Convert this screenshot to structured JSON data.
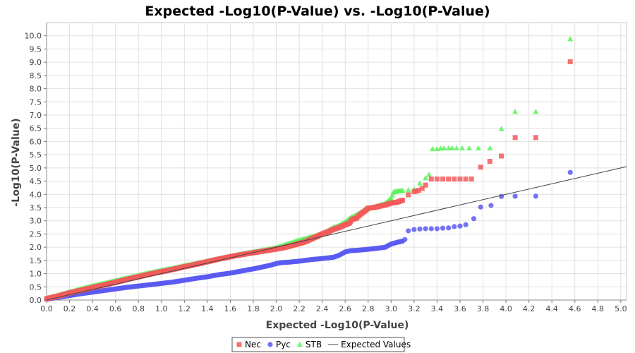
{
  "chart_data": {
    "type": "scatter",
    "title": "Expected -Log10(P-Value) vs. -Log10(P-Value)",
    "xlabel": "Expected -Log10(P-Value)",
    "ylabel": "-Log10(P-Value)",
    "xlim": [
      0,
      5.05
    ],
    "ylim": [
      0,
      10.5
    ],
    "x_ticks": [
      "0.0",
      "0.2",
      "0.4",
      "0.6",
      "0.8",
      "1.0",
      "1.2",
      "1.4",
      "1.6",
      "1.8",
      "2.0",
      "2.2",
      "2.4",
      "2.6",
      "2.8",
      "3.0",
      "3.2",
      "3.4",
      "3.6",
      "3.8",
      "4.0",
      "4.2",
      "4.4",
      "4.6",
      "4.8",
      "5.0"
    ],
    "y_ticks": [
      "0.0",
      "0.5",
      "1.0",
      "1.5",
      "2.0",
      "2.5",
      "3.0",
      "3.5",
      "4.0",
      "4.5",
      "5.0",
      "5.5",
      "6.0",
      "6.5",
      "7.0",
      "7.5",
      "8.0",
      "8.5",
      "9.0",
      "9.5",
      "10.0"
    ],
    "grid": true,
    "legend_position": "bottom",
    "background_color": "#ffffff",
    "plot_background": "#ffffff",
    "series": [
      {
        "name": "Nec",
        "marker": "square",
        "color": "#f25a5a",
        "x": [
          0.0,
          0.1,
          0.2,
          0.3,
          0.4,
          0.5,
          0.6,
          0.7,
          0.8,
          0.9,
          1.0,
          1.1,
          1.2,
          1.3,
          1.4,
          1.5,
          1.6,
          1.7,
          1.8,
          1.9,
          2.0,
          2.05,
          2.1,
          2.15,
          2.2,
          2.25,
          2.3,
          2.35,
          2.4,
          2.45,
          2.5,
          2.55,
          2.6,
          2.62,
          2.64,
          2.66,
          2.7,
          2.72,
          2.75,
          2.78,
          2.8,
          2.85,
          2.9,
          2.95,
          3.0,
          3.05,
          3.1,
          3.15,
          3.2,
          3.22,
          3.24,
          3.27,
          3.3,
          3.35,
          3.4,
          3.45,
          3.5,
          3.55,
          3.6,
          3.65,
          3.7,
          3.78,
          3.86,
          3.96,
          4.08,
          4.26,
          4.56
        ],
        "y": [
          0.05,
          0.15,
          0.27,
          0.37,
          0.47,
          0.57,
          0.67,
          0.78,
          0.88,
          0.98,
          1.07,
          1.16,
          1.26,
          1.35,
          1.45,
          1.55,
          1.64,
          1.72,
          1.79,
          1.86,
          1.93,
          1.97,
          2.02,
          2.08,
          2.14,
          2.2,
          2.3,
          2.4,
          2.5,
          2.58,
          2.68,
          2.75,
          2.85,
          2.88,
          2.92,
          3.05,
          3.1,
          3.2,
          3.3,
          3.4,
          3.48,
          3.5,
          3.55,
          3.6,
          3.67,
          3.7,
          3.78,
          3.98,
          4.1,
          4.12,
          4.15,
          4.22,
          4.35,
          4.58,
          4.58,
          4.58,
          4.58,
          4.58,
          4.58,
          4.58,
          4.58,
          5.03,
          5.25,
          5.45,
          6.15,
          6.15,
          9.02
        ]
      },
      {
        "name": "Pyc",
        "marker": "circle",
        "color": "#5a5af2",
        "x": [
          0.0,
          0.1,
          0.2,
          0.3,
          0.4,
          0.5,
          0.6,
          0.7,
          0.8,
          0.9,
          1.0,
          1.1,
          1.2,
          1.3,
          1.4,
          1.5,
          1.6,
          1.7,
          1.8,
          1.9,
          1.95,
          2.0,
          2.05,
          2.1,
          2.2,
          2.3,
          2.4,
          2.5,
          2.55,
          2.6,
          2.65,
          2.7,
          2.8,
          2.9,
          2.95,
          3.0,
          3.05,
          3.1,
          3.12,
          3.15,
          3.2,
          3.25,
          3.3,
          3.35,
          3.4,
          3.45,
          3.5,
          3.55,
          3.6,
          3.65,
          3.72,
          3.78,
          3.87,
          3.96,
          4.08,
          4.26,
          4.56
        ],
        "y": [
          0.03,
          0.1,
          0.17,
          0.24,
          0.3,
          0.36,
          0.42,
          0.48,
          0.53,
          0.58,
          0.63,
          0.68,
          0.75,
          0.82,
          0.88,
          0.96,
          1.02,
          1.1,
          1.18,
          1.27,
          1.32,
          1.38,
          1.42,
          1.43,
          1.47,
          1.53,
          1.57,
          1.62,
          1.7,
          1.82,
          1.87,
          1.88,
          1.92,
          1.97,
          2.0,
          2.12,
          2.18,
          2.23,
          2.29,
          2.62,
          2.67,
          2.69,
          2.7,
          2.7,
          2.7,
          2.72,
          2.73,
          2.78,
          2.8,
          2.85,
          3.08,
          3.52,
          3.58,
          3.92,
          3.93,
          3.93,
          4.83
        ]
      },
      {
        "name": "STB",
        "marker": "triangle",
        "color": "#5af25a",
        "x": [
          0.0,
          0.1,
          0.2,
          0.3,
          0.4,
          0.5,
          0.6,
          0.7,
          0.8,
          0.9,
          1.0,
          1.1,
          1.2,
          1.3,
          1.4,
          1.5,
          1.6,
          1.7,
          1.8,
          1.9,
          2.0,
          2.1,
          2.2,
          2.3,
          2.4,
          2.45,
          2.5,
          2.55,
          2.6,
          2.65,
          2.7,
          2.75,
          2.8,
          2.85,
          2.9,
          2.95,
          3.0,
          3.02,
          3.05,
          3.1,
          3.15,
          3.2,
          3.25,
          3.3,
          3.33,
          3.36,
          3.4,
          3.43,
          3.46,
          3.5,
          3.53,
          3.57,
          3.62,
          3.68,
          3.76,
          3.86,
          3.96,
          4.08,
          4.26,
          4.56
        ],
        "y": [
          0.06,
          0.18,
          0.3,
          0.42,
          0.53,
          0.63,
          0.73,
          0.83,
          0.93,
          1.03,
          1.12,
          1.2,
          1.3,
          1.38,
          1.47,
          1.56,
          1.65,
          1.74,
          1.82,
          1.9,
          1.98,
          2.12,
          2.26,
          2.38,
          2.5,
          2.62,
          2.75,
          2.82,
          2.95,
          3.12,
          3.22,
          3.35,
          3.46,
          3.52,
          3.58,
          3.65,
          3.85,
          4.08,
          4.12,
          4.14,
          4.16,
          4.2,
          4.42,
          4.62,
          4.75,
          5.72,
          5.72,
          5.74,
          5.75,
          5.75,
          5.75,
          5.75,
          5.75,
          5.75,
          5.75,
          5.75,
          6.48,
          7.13,
          7.13,
          9.88
        ]
      },
      {
        "name": "Expected Values",
        "marker": "line",
        "color": "#444444",
        "x": [
          0.0,
          5.05
        ],
        "y": [
          0.0,
          5.05
        ]
      }
    ]
  }
}
